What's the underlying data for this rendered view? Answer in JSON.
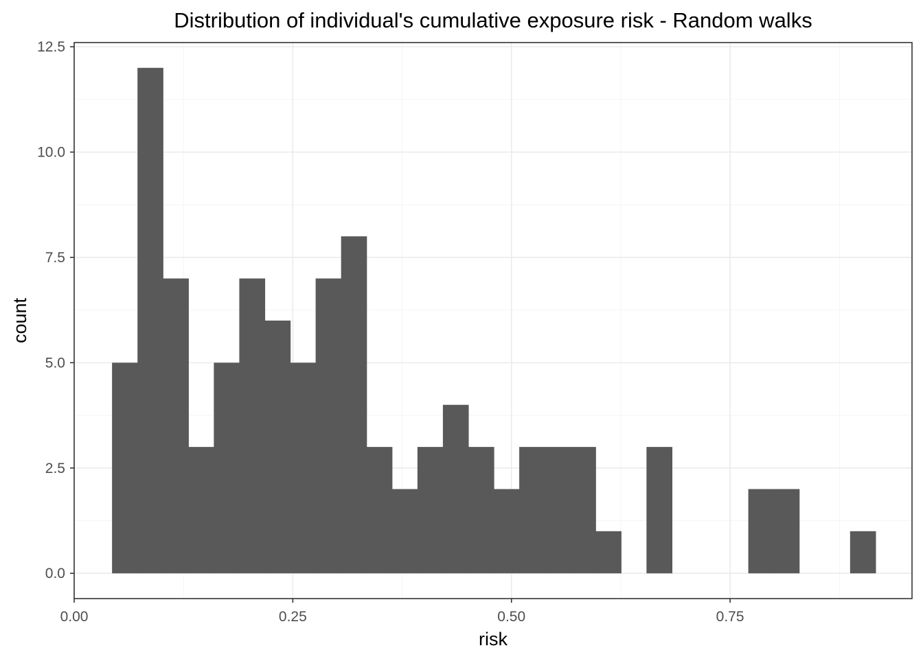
{
  "chart_data": {
    "type": "bar",
    "title": "Distribution of individual's cumulative exposure risk - Random walks",
    "xlabel": "risk",
    "ylabel": "count",
    "xlim": [
      0.0,
      0.958
    ],
    "ylim": [
      -0.6,
      12.6
    ],
    "xticks": [
      0.0,
      0.25,
      0.5,
      0.75
    ],
    "xtick_labels": [
      "0.00",
      "0.25",
      "0.50",
      "0.75"
    ],
    "yticks": [
      0.0,
      2.5,
      5.0,
      7.5,
      10.0,
      12.5
    ],
    "ytick_labels": [
      "0.0",
      "2.5",
      "5.0",
      "7.5",
      "10.0",
      "12.5"
    ],
    "grid": true,
    "bin_start": 0.0433,
    "bin_width": 0.0291,
    "values": [
      5,
      12,
      7,
      3,
      5,
      7,
      6,
      5,
      7,
      8,
      3,
      2,
      3,
      4,
      3,
      2,
      3,
      3,
      3,
      1,
      0,
      3,
      0,
      0,
      0,
      2,
      2,
      0,
      0,
      1
    ],
    "bar_color": "#595959"
  }
}
